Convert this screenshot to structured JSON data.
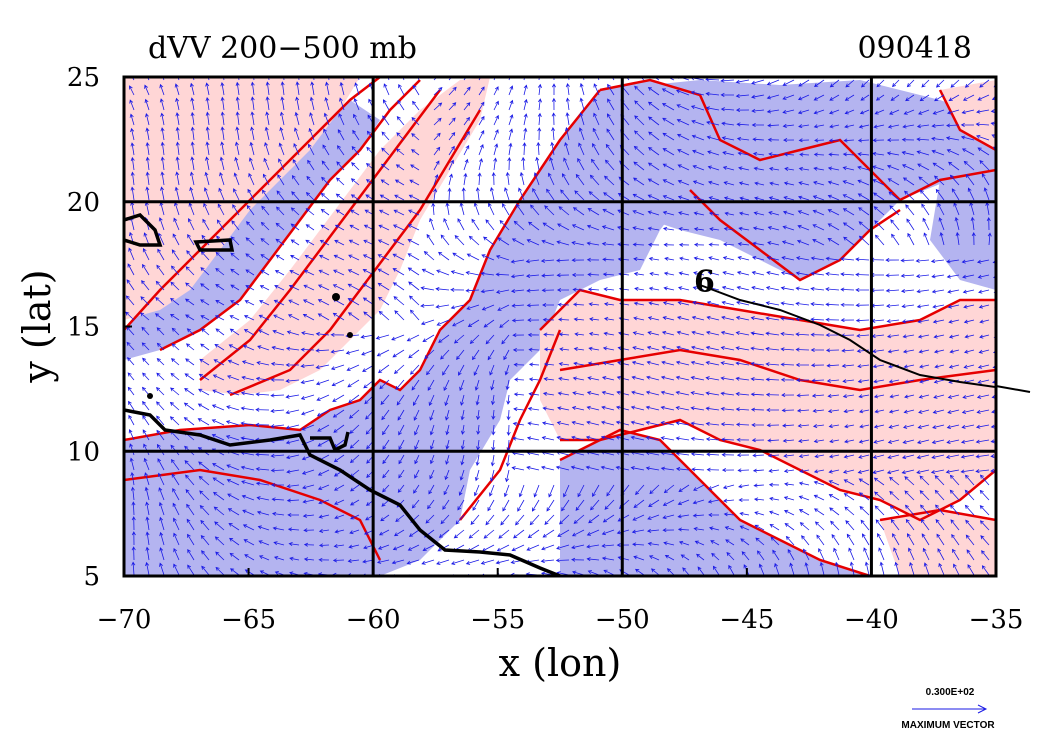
{
  "chart_data": {
    "type": "contour",
    "title": "dVV 200−500 mb",
    "date_label": "090418",
    "xlabel": "x (lon)",
    "ylabel": "y (lat)",
    "xlim": [
      -70,
      -35
    ],
    "ylim": [
      5,
      25
    ],
    "x_ticks": [
      -70,
      -65,
      -60,
      -55,
      -50,
      -45,
      -40,
      -35
    ],
    "x_tick_labels": [
      "−70",
      "−65",
      "−60",
      "−55",
      "−50",
      "−45",
      "−40",
      "−35"
    ],
    "y_ticks": [
      5,
      10,
      15,
      20,
      25
    ],
    "y_tick_labels": [
      "5",
      "10",
      "15",
      "20",
      "25"
    ],
    "grid_lon": [
      -60,
      -50,
      -40
    ],
    "grid_lat": [
      10,
      20
    ],
    "vector_legend": {
      "value": "0.300E+02",
      "label": "MAXIMUM VECTOR"
    },
    "colors": {
      "positive_fill": "#ffd6d6",
      "negative_fill": "#b4b4f0",
      "contour_line": "#e60000",
      "vectors": "#1a1ae6",
      "coastline": "#000000"
    },
    "storm_symbol": {
      "lon": -46.8,
      "lat": 16.8
    }
  }
}
